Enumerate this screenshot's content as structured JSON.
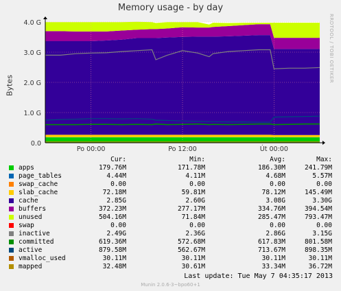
{
  "title": "Memory usage - by day",
  "watermark": "RRDTOOL / TOBI OETIKER",
  "footer": "Munin 2.0.6-3~bpo60+1",
  "last_update": "Last update:  Tue May  7 04:35:17 2013",
  "legend_headers": {
    "cur": "Cur:",
    "min": "Min:",
    "avg": "Avg:",
    "max": "Max:"
  },
  "legend": [
    {
      "name": "apps",
      "color": "#00cc00",
      "cur": "179.76M",
      "min": "171.78M",
      "avg": "186.30M",
      "max": "241.79M"
    },
    {
      "name": "page_tables",
      "color": "#0066b3",
      "cur": "4.44M",
      "min": "4.11M",
      "avg": "4.68M",
      "max": "5.57M"
    },
    {
      "name": "swap_cache",
      "color": "#ff8000",
      "cur": "0.00",
      "min": "0.00",
      "avg": "0.00",
      "max": "0.00"
    },
    {
      "name": "slab_cache",
      "color": "#ffcc00",
      "cur": "72.18M",
      "min": "59.81M",
      "avg": "78.12M",
      "max": "145.49M"
    },
    {
      "name": "cache",
      "color": "#330099",
      "cur": "2.85G",
      "min": "2.60G",
      "avg": "3.08G",
      "max": "3.30G"
    },
    {
      "name": "buffers",
      "color": "#990099",
      "cur": "372.23M",
      "min": "277.17M",
      "avg": "334.76M",
      "max": "394.54M"
    },
    {
      "name": "unused",
      "color": "#ccff00",
      "cur": "504.16M",
      "min": "71.84M",
      "avg": "285.47M",
      "max": "793.47M"
    },
    {
      "name": "swap",
      "color": "#ff0000",
      "cur": "0.00",
      "min": "0.00",
      "avg": "0.00",
      "max": "0.00"
    },
    {
      "name": "inactive",
      "color": "#808080",
      "cur": "2.49G",
      "min": "2.36G",
      "avg": "2.86G",
      "max": "3.15G"
    },
    {
      "name": "committed",
      "color": "#008f00",
      "cur": "619.36M",
      "min": "572.68M",
      "avg": "617.83M",
      "max": "801.58M"
    },
    {
      "name": "active",
      "color": "#00487d",
      "cur": "879.58M",
      "min": "562.67M",
      "avg": "713.67M",
      "max": "898.35M"
    },
    {
      "name": "vmalloc_used",
      "color": "#b35a00",
      "cur": "30.11M",
      "min": "30.11M",
      "avg": "30.11M",
      "max": "30.11M"
    },
    {
      "name": "mapped",
      "color": "#b38f00",
      "cur": "32.48M",
      "min": "30.61M",
      "avg": "33.34M",
      "max": "36.72M"
    }
  ],
  "chart_data": {
    "type": "area",
    "title": "Memory usage - by day",
    "ylabel": "Bytes",
    "ylim": [
      0,
      4.0
    ],
    "y_unit": "G",
    "yticks": [
      "0.0",
      "1.0 G",
      "2.0 G",
      "3.0 G",
      "4.0 G"
    ],
    "ytick_values": [
      0,
      1,
      2,
      3,
      4
    ],
    "xticks": [
      "Po 00:00",
      "Po 12:00",
      "Út 00:00"
    ],
    "xtick_values": [
      6,
      18,
      30
    ],
    "xlim": [
      0,
      36
    ],
    "grid": true,
    "x": [
      0,
      2,
      4,
      6,
      8,
      10,
      12,
      14,
      14.5,
      16,
      18,
      20,
      21.5,
      22,
      24,
      26,
      28,
      29.5,
      30,
      32,
      34,
      36
    ],
    "stacked_series": [
      {
        "name": "apps",
        "color": "#00cc00",
        "values": [
          0.18,
          0.18,
          0.18,
          0.18,
          0.18,
          0.18,
          0.18,
          0.18,
          0.18,
          0.18,
          0.18,
          0.18,
          0.18,
          0.18,
          0.18,
          0.18,
          0.18,
          0.18,
          0.18,
          0.18,
          0.18,
          0.18
        ]
      },
      {
        "name": "page_tables",
        "color": "#0066b3",
        "values": [
          0.005,
          0.005,
          0.005,
          0.005,
          0.005,
          0.005,
          0.005,
          0.005,
          0.005,
          0.005,
          0.005,
          0.005,
          0.005,
          0.005,
          0.005,
          0.005,
          0.005,
          0.005,
          0.005,
          0.005,
          0.005,
          0.005
        ]
      },
      {
        "name": "slab_cache",
        "color": "#ffcc00",
        "values": [
          0.08,
          0.08,
          0.08,
          0.08,
          0.08,
          0.08,
          0.08,
          0.08,
          0.08,
          0.08,
          0.08,
          0.08,
          0.08,
          0.08,
          0.08,
          0.08,
          0.08,
          0.08,
          0.07,
          0.07,
          0.07,
          0.07
        ]
      },
      {
        "name": "cache",
        "color": "#330099",
        "values": [
          3.1,
          3.1,
          3.1,
          3.1,
          3.12,
          3.15,
          3.2,
          3.2,
          3.2,
          3.22,
          3.24,
          3.25,
          3.25,
          3.25,
          3.26,
          3.28,
          3.3,
          3.3,
          2.85,
          2.85,
          2.85,
          2.85
        ]
      },
      {
        "name": "buffers",
        "color": "#990099",
        "values": [
          0.33,
          0.33,
          0.32,
          0.32,
          0.3,
          0.3,
          0.28,
          0.3,
          0.3,
          0.3,
          0.32,
          0.3,
          0.3,
          0.32,
          0.34,
          0.35,
          0.36,
          0.36,
          0.37,
          0.37,
          0.37,
          0.37
        ]
      },
      {
        "name": "unused",
        "color": "#ccff00",
        "values": [
          0.3,
          0.3,
          0.31,
          0.31,
          0.31,
          0.28,
          0.26,
          0.23,
          0.2,
          0.21,
          0.17,
          0.18,
          0.1,
          0.14,
          0.1,
          0.08,
          0.05,
          0.05,
          0.5,
          0.5,
          0.5,
          0.5
        ]
      }
    ],
    "line_series": [
      {
        "name": "inactive",
        "color": "#808080",
        "values": [
          2.9,
          2.9,
          2.95,
          2.97,
          2.98,
          3.02,
          3.05,
          3.08,
          2.75,
          2.9,
          3.05,
          2.97,
          2.85,
          2.95,
          3.02,
          3.05,
          3.08,
          3.08,
          2.45,
          2.47,
          2.47,
          2.49
        ]
      },
      {
        "name": "committed",
        "color": "#008f00",
        "values": [
          0.6,
          0.6,
          0.6,
          0.61,
          0.61,
          0.6,
          0.61,
          0.6,
          0.62,
          0.6,
          0.61,
          0.62,
          0.6,
          0.61,
          0.6,
          0.61,
          0.62,
          0.62,
          0.6,
          0.61,
          0.62,
          0.62
        ]
      },
      {
        "name": "active",
        "color": "#00487d",
        "values": [
          0.75,
          0.77,
          0.78,
          0.8,
          0.8,
          0.79,
          0.8,
          0.78,
          0.75,
          0.74,
          0.72,
          0.71,
          0.7,
          0.7,
          0.69,
          0.69,
          0.68,
          0.68,
          0.85,
          0.86,
          0.87,
          0.88
        ]
      },
      {
        "name": "mapped",
        "color": "#b38f00",
        "values": [
          0.03,
          0.03,
          0.03,
          0.03,
          0.03,
          0.03,
          0.03,
          0.03,
          0.03,
          0.03,
          0.03,
          0.03,
          0.03,
          0.03,
          0.03,
          0.03,
          0.03,
          0.03,
          0.03,
          0.03,
          0.03,
          0.03
        ]
      }
    ]
  }
}
